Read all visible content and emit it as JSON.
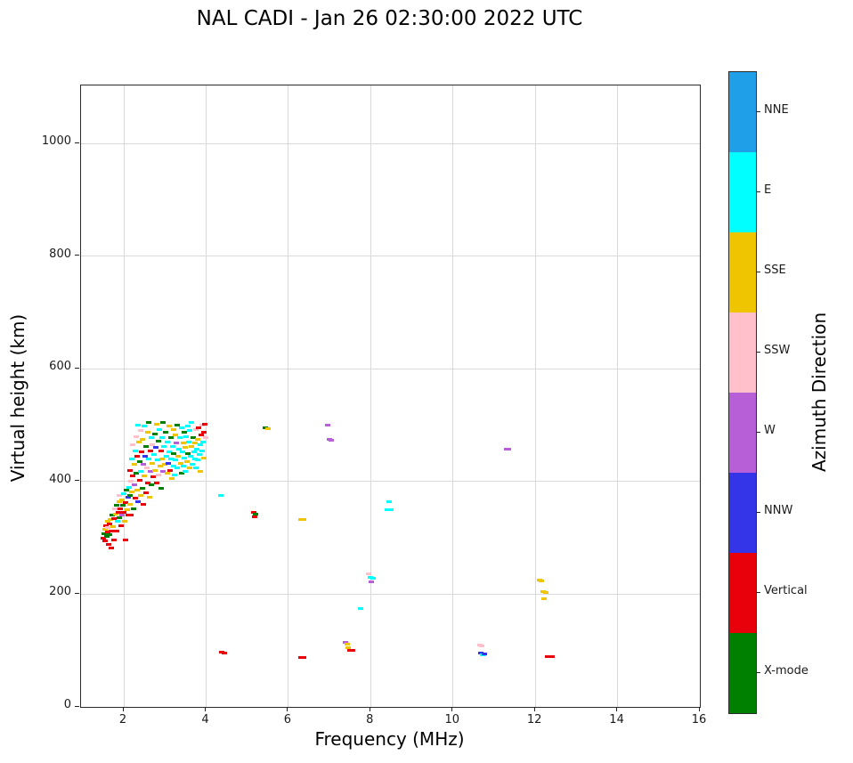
{
  "title": "NAL CADI - Jan 26 02:30:00 2022 UTC",
  "chart_data": {
    "type": "scatter",
    "title": "NAL CADI - Jan 26 02:30:00 2022 UTC",
    "xlabel": "Frequency (MHz)",
    "ylabel": "Virtual height (km)",
    "xlim": [
      0.96,
      16
    ],
    "ylim": [
      0,
      1103
    ],
    "xticks": [
      2,
      4,
      6,
      8,
      10,
      12,
      14,
      16
    ],
    "yticks": [
      0,
      200,
      400,
      600,
      800,
      1000
    ],
    "grid": true,
    "grid_color": "#d9d9d9",
    "colorbar": {
      "label": "Azimuth Direction",
      "categories": [
        {
          "label": "NNE",
          "color": "#1e9fe8"
        },
        {
          "label": "E",
          "color": "#00ffff"
        },
        {
          "label": "SSE",
          "color": "#eec500"
        },
        {
          "label": "SSW",
          "color": "#ffc0cb"
        },
        {
          "label": "W",
          "color": "#b65fd6"
        },
        {
          "label": "NNW",
          "color": "#3434e8"
        },
        {
          "label": "Vertical",
          "color": "#e8000b"
        },
        {
          "label": "X-mode",
          "color": "#008000"
        }
      ]
    },
    "points_format": [
      "frequency_mhz",
      "virtual_height_km",
      "azimuth_category"
    ],
    "points": [
      [
        1.5,
        300,
        "Vertical"
      ],
      [
        1.52,
        308,
        "X-mode"
      ],
      [
        1.54,
        295,
        "Vertical"
      ],
      [
        1.55,
        315,
        "SSE"
      ],
      [
        1.57,
        322,
        "Vertical"
      ],
      [
        1.58,
        303,
        "X-mode"
      ],
      [
        1.6,
        310,
        "Vertical"
      ],
      [
        1.6,
        330,
        "SSE"
      ],
      [
        1.62,
        318,
        "SSW"
      ],
      [
        1.63,
        288,
        "Vertical"
      ],
      [
        1.65,
        325,
        "Vertical"
      ],
      [
        1.66,
        305,
        "X-mode"
      ],
      [
        1.68,
        333,
        "SSE"
      ],
      [
        1.7,
        312,
        "Vertical"
      ],
      [
        1.7,
        282,
        "Vertical"
      ],
      [
        1.72,
        340,
        "X-mode"
      ],
      [
        1.74,
        320,
        "SSE"
      ],
      [
        1.75,
        297,
        "Vertical"
      ],
      [
        1.77,
        335,
        "Vertical"
      ],
      [
        1.78,
        352,
        "SSW"
      ],
      [
        1.8,
        342,
        "SSE"
      ],
      [
        1.82,
        312,
        "Vertical"
      ],
      [
        1.83,
        358,
        "X-mode"
      ],
      [
        1.85,
        330,
        "E"
      ],
      [
        1.86,
        345,
        "Vertical"
      ],
      [
        1.88,
        365,
        "SSE"
      ],
      [
        1.9,
        336,
        "X-mode"
      ],
      [
        1.9,
        375,
        "SSW"
      ],
      [
        1.92,
        352,
        "Vertical"
      ],
      [
        1.94,
        322,
        "Vertical"
      ],
      [
        1.95,
        368,
        "SSE"
      ],
      [
        1.96,
        340,
        "W"
      ],
      [
        1.98,
        358,
        "X-mode"
      ],
      [
        2.0,
        345,
        "Vertical"
      ],
      [
        2.0,
        378,
        "E"
      ],
      [
        2.02,
        330,
        "SSE"
      ],
      [
        2.04,
        362,
        "Vertical"
      ],
      [
        2.05,
        296,
        "Vertical"
      ],
      [
        2.06,
        385,
        "X-mode"
      ],
      [
        2.08,
        350,
        "SSE"
      ],
      [
        2.1,
        372,
        "NNW"
      ],
      [
        2.1,
        340,
        "Vertical"
      ],
      [
        2.12,
        390,
        "E"
      ],
      [
        2.14,
        360,
        "SSE"
      ],
      [
        2.15,
        420,
        "Vertical"
      ],
      [
        2.16,
        375,
        "X-mode"
      ],
      [
        2.18,
        400,
        "SSW"
      ],
      [
        2.18,
        340,
        "Vertical"
      ],
      [
        2.2,
        440,
        "E"
      ],
      [
        2.2,
        382,
        "SSE"
      ],
      [
        2.22,
        410,
        "Vertical"
      ],
      [
        2.22,
        465,
        "SSW"
      ],
      [
        2.24,
        352,
        "X-mode"
      ],
      [
        2.25,
        430,
        "SSE"
      ],
      [
        2.26,
        395,
        "W"
      ],
      [
        2.28,
        455,
        "E"
      ],
      [
        2.28,
        370,
        "Vertical"
      ],
      [
        2.3,
        480,
        "SSW"
      ],
      [
        2.3,
        415,
        "X-mode"
      ],
      [
        2.32,
        385,
        "SSE"
      ],
      [
        2.33,
        445,
        "Vertical"
      ],
      [
        2.34,
        500,
        "E"
      ],
      [
        2.35,
        365,
        "NNW"
      ],
      [
        2.36,
        470,
        "SSE"
      ],
      [
        2.38,
        402,
        "Vertical"
      ],
      [
        2.38,
        435,
        "X-mode"
      ],
      [
        2.4,
        490,
        "SSW"
      ],
      [
        2.4,
        375,
        "SSE"
      ],
      [
        2.42,
        418,
        "E"
      ],
      [
        2.44,
        452,
        "Vertical"
      ],
      [
        2.45,
        388,
        "X-mode"
      ],
      [
        2.46,
        475,
        "SSE"
      ],
      [
        2.48,
        430,
        "W"
      ],
      [
        2.48,
        360,
        "Vertical"
      ],
      [
        2.5,
        498,
        "E"
      ],
      [
        2.5,
        410,
        "SSE"
      ],
      [
        2.52,
        445,
        "NNW"
      ],
      [
        2.54,
        380,
        "Vertical"
      ],
      [
        2.55,
        462,
        "X-mode"
      ],
      [
        2.56,
        425,
        "SSW"
      ],
      [
        2.58,
        488,
        "SSE"
      ],
      [
        2.58,
        398,
        "Vertical"
      ],
      [
        2.6,
        440,
        "E"
      ],
      [
        2.6,
        505,
        "X-mode"
      ],
      [
        2.62,
        372,
        "SSE"
      ],
      [
        2.64,
        455,
        "Vertical"
      ],
      [
        2.65,
        418,
        "W"
      ],
      [
        2.66,
        478,
        "E"
      ],
      [
        2.68,
        395,
        "X-mode"
      ],
      [
        2.7,
        432,
        "SSE"
      ],
      [
        2.7,
        465,
        "SSW"
      ],
      [
        2.72,
        408,
        "Vertical"
      ],
      [
        2.74,
        448,
        "E"
      ],
      [
        2.75,
        485,
        "X-mode"
      ],
      [
        2.76,
        420,
        "SSE"
      ],
      [
        2.78,
        460,
        "NNW"
      ],
      [
        2.8,
        398,
        "Vertical"
      ],
      [
        2.8,
        502,
        "SSE"
      ],
      [
        2.82,
        438,
        "E"
      ],
      [
        2.84,
        472,
        "X-mode"
      ],
      [
        2.85,
        412,
        "SSW"
      ],
      [
        2.86,
        492,
        "E"
      ],
      [
        2.88,
        428,
        "SSE"
      ],
      [
        2.9,
        455,
        "Vertical"
      ],
      [
        2.9,
        388,
        "X-mode"
      ],
      [
        2.92,
        478,
        "E"
      ],
      [
        2.94,
        440,
        "SSE"
      ],
      [
        2.95,
        505,
        "X-mode"
      ],
      [
        2.96,
        418,
        "W"
      ],
      [
        2.98,
        462,
        "E"
      ],
      [
        3.0,
        430,
        "SSE"
      ],
      [
        3.02,
        488,
        "X-mode"
      ],
      [
        3.04,
        445,
        "E"
      ],
      [
        3.05,
        415,
        "SSE"
      ],
      [
        3.06,
        470,
        "E"
      ],
      [
        3.08,
        432,
        "NNW"
      ],
      [
        3.1,
        498,
        "SSE"
      ],
      [
        3.1,
        452,
        "E"
      ],
      [
        3.12,
        420,
        "Vertical"
      ],
      [
        3.14,
        478,
        "X-mode"
      ],
      [
        3.15,
        440,
        "E"
      ],
      [
        3.16,
        405,
        "SSE"
      ],
      [
        3.18,
        462,
        "E"
      ],
      [
        3.2,
        492,
        "SSE"
      ],
      [
        3.2,
        428,
        "E"
      ],
      [
        3.22,
        450,
        "X-mode"
      ],
      [
        3.24,
        412,
        "E"
      ],
      [
        3.25,
        482,
        "SSE"
      ],
      [
        3.26,
        438,
        "E"
      ],
      [
        3.28,
        468,
        "W"
      ],
      [
        3.3,
        425,
        "E"
      ],
      [
        3.3,
        500,
        "X-mode"
      ],
      [
        3.32,
        445,
        "SSE"
      ],
      [
        3.34,
        458,
        "E"
      ],
      [
        3.36,
        478,
        "E"
      ],
      [
        3.38,
        432,
        "SSE"
      ],
      [
        3.4,
        495,
        "E"
      ],
      [
        3.4,
        415,
        "X-mode"
      ],
      [
        3.42,
        452,
        "E"
      ],
      [
        3.44,
        468,
        "SSE"
      ],
      [
        3.45,
        428,
        "E"
      ],
      [
        3.46,
        488,
        "X-mode"
      ],
      [
        3.48,
        442,
        "E"
      ],
      [
        3.5,
        460,
        "SSE"
      ],
      [
        3.5,
        418,
        "E"
      ],
      [
        3.52,
        480,
        "E"
      ],
      [
        3.54,
        435,
        "SSE"
      ],
      [
        3.55,
        498,
        "E"
      ],
      [
        3.56,
        450,
        "X-mode"
      ],
      [
        3.58,
        470,
        "E"
      ],
      [
        3.6,
        425,
        "SSE"
      ],
      [
        3.6,
        490,
        "E"
      ],
      [
        3.62,
        445,
        "E"
      ],
      [
        3.64,
        462,
        "SSE"
      ],
      [
        3.65,
        505,
        "E"
      ],
      [
        3.66,
        430,
        "E"
      ],
      [
        3.68,
        478,
        "X-mode"
      ],
      [
        3.7,
        452,
        "E"
      ],
      [
        3.72,
        468,
        "SSE"
      ],
      [
        3.74,
        440,
        "E"
      ],
      [
        3.75,
        492,
        "SSW"
      ],
      [
        3.76,
        425,
        "E"
      ],
      [
        3.78,
        458,
        "E"
      ],
      [
        3.8,
        475,
        "SSE"
      ],
      [
        3.8,
        438,
        "E"
      ],
      [
        3.82,
        495,
        "Vertical"
      ],
      [
        3.84,
        448,
        "E"
      ],
      [
        3.85,
        465,
        "E"
      ],
      [
        3.86,
        418,
        "SSE"
      ],
      [
        3.88,
        482,
        "Vertical"
      ],
      [
        3.9,
        455,
        "E"
      ],
      [
        3.9,
        500,
        "SSW"
      ],
      [
        3.92,
        470,
        "E"
      ],
      [
        3.94,
        488,
        "Vertical"
      ],
      [
        3.95,
        442,
        "SSE"
      ],
      [
        3.96,
        502,
        "Vertical"
      ],
      [
        3.98,
        478,
        "SSW"
      ],
      [
        4.35,
        375,
        "E"
      ],
      [
        4.38,
        97,
        "Vertical"
      ],
      [
        4.44,
        96,
        "Vertical"
      ],
      [
        5.15,
        345,
        "Vertical"
      ],
      [
        5.2,
        342,
        "X-mode"
      ],
      [
        5.18,
        338,
        "Vertical"
      ],
      [
        5.45,
        495,
        "X-mode"
      ],
      [
        5.5,
        494,
        "SSE"
      ],
      [
        6.3,
        333,
        "SSE"
      ],
      [
        6.36,
        332,
        "SSE"
      ],
      [
        6.3,
        88,
        "Vertical"
      ],
      [
        6.36,
        88,
        "Vertical"
      ],
      [
        6.95,
        500,
        "W"
      ],
      [
        7.0,
        475,
        "W"
      ],
      [
        7.05,
        474,
        "W"
      ],
      [
        7.38,
        115,
        "W"
      ],
      [
        7.42,
        112,
        "SSE"
      ],
      [
        7.45,
        105,
        "SSE"
      ],
      [
        7.5,
        100,
        "Vertical"
      ],
      [
        7.55,
        100,
        "Vertical"
      ],
      [
        7.75,
        175,
        "E"
      ],
      [
        7.95,
        236,
        "SSW"
      ],
      [
        8.0,
        230,
        "E"
      ],
      [
        8.06,
        228,
        "E"
      ],
      [
        8.02,
        222,
        "W"
      ],
      [
        8.45,
        365,
        "E"
      ],
      [
        8.4,
        350,
        "E"
      ],
      [
        8.5,
        350,
        "E"
      ],
      [
        10.65,
        110,
        "SSW"
      ],
      [
        10.7,
        108,
        "SSW"
      ],
      [
        10.68,
        95,
        "NNW"
      ],
      [
        10.72,
        93,
        "E"
      ],
      [
        10.76,
        94,
        "NNW"
      ],
      [
        11.3,
        458,
        "W"
      ],
      [
        11.35,
        457,
        "W"
      ],
      [
        12.1,
        225,
        "SSE"
      ],
      [
        12.15,
        224,
        "SSE"
      ],
      [
        12.2,
        205,
        "SSE"
      ],
      [
        12.25,
        203,
        "SSE"
      ],
      [
        12.22,
        192,
        "SSE"
      ],
      [
        12.3,
        90,
        "Vertical"
      ],
      [
        12.35,
        90,
        "Vertical"
      ],
      [
        12.4,
        89,
        "Vertical"
      ]
    ]
  }
}
